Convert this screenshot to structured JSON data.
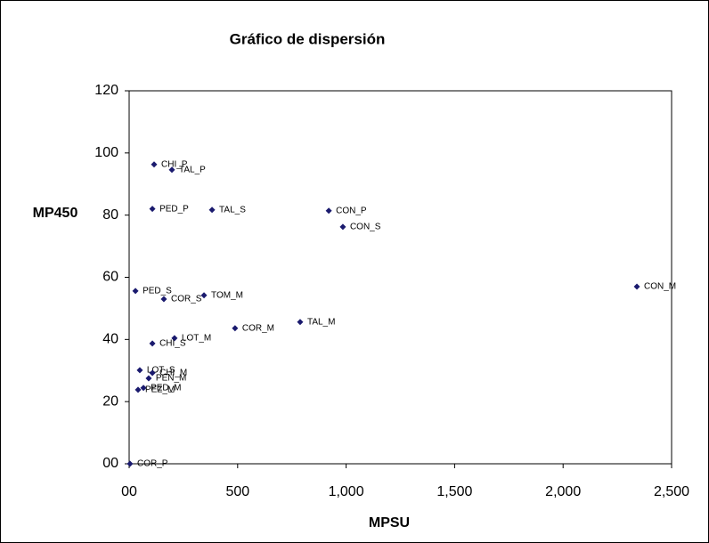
{
  "chart_data": {
    "type": "scatter",
    "title": "Gráfico de dispersión",
    "x_label": "MPSU",
    "y_label": "MP450",
    "color": "#1a1a6e",
    "points": [
      {
        "label": "CHI_P",
        "x": 115,
        "y": 96.3
      },
      {
        "label": "TAL_P",
        "x": 197,
        "y": 94.6
      },
      {
        "label": "PED_P",
        "x": 107,
        "y": 82
      },
      {
        "label": "TAL_S",
        "x": 382,
        "y": 81.7
      },
      {
        "label": "CON_P",
        "x": 920,
        "y": 81.4
      },
      {
        "label": "CON_S",
        "x": 985,
        "y": 76.2
      },
      {
        "label": "CON_M",
        "x": 2340,
        "y": 57
      },
      {
        "label": "PED_S",
        "x": 29,
        "y": 55.6
      },
      {
        "label": "TOM_M",
        "x": 345,
        "y": 54.2
      },
      {
        "label": "COR_S",
        "x": 160,
        "y": 53
      },
      {
        "label": "TAL_M",
        "x": 788,
        "y": 45.6
      },
      {
        "label": "COR_M",
        "x": 488,
        "y": 43.6
      },
      {
        "label": "LOT_M",
        "x": 209,
        "y": 40.4
      },
      {
        "label": "CHI_S",
        "x": 107,
        "y": 38.7
      },
      {
        "label": "LOT_S",
        "x": 49,
        "y": 30.1
      },
      {
        "label": "CHI_M",
        "x": 107,
        "y": 29.2
      },
      {
        "label": "PEN_M",
        "x": 90,
        "y": 27.5
      },
      {
        "label": "PED_M",
        "x": 66,
        "y": 24.4
      },
      {
        "label": "PEZ_M",
        "x": 41,
        "y": 23.8
      },
      {
        "label": "COR_P",
        "x": 4,
        "y": 0
      }
    ],
    "xlim": [
      0,
      2500
    ],
    "xticks": [
      {
        "value": 0,
        "label": "00"
      },
      500,
      {
        "value": 1000,
        "label": "1,000"
      },
      {
        "value": 1500,
        "label": "1,500"
      },
      {
        "value": 2000,
        "label": "2,000"
      },
      {
        "value": 2500,
        "label": "2,500"
      }
    ],
    "ylim": [
      0,
      120
    ],
    "yticks": [
      {
        "value": 0,
        "label": "00"
      },
      20,
      40,
      60,
      80,
      100,
      120
    ]
  }
}
